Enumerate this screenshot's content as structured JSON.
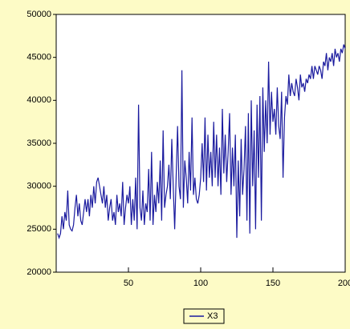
{
  "chart_data": {
    "type": "line",
    "x": [
      1,
      2,
      3,
      4,
      5,
      6,
      7,
      8,
      9,
      10,
      11,
      12,
      13,
      14,
      15,
      16,
      17,
      18,
      19,
      20,
      21,
      22,
      23,
      24,
      25,
      26,
      27,
      28,
      29,
      30,
      31,
      32,
      33,
      34,
      35,
      36,
      37,
      38,
      39,
      40,
      41,
      42,
      43,
      44,
      45,
      46,
      47,
      48,
      49,
      50,
      51,
      52,
      53,
      54,
      55,
      56,
      57,
      58,
      59,
      60,
      61,
      62,
      63,
      64,
      65,
      66,
      67,
      68,
      69,
      70,
      71,
      72,
      73,
      74,
      75,
      76,
      77,
      78,
      79,
      80,
      81,
      82,
      83,
      84,
      85,
      86,
      87,
      88,
      89,
      90,
      91,
      92,
      93,
      94,
      95,
      96,
      97,
      98,
      99,
      100,
      101,
      102,
      103,
      104,
      105,
      106,
      107,
      108,
      109,
      110,
      111,
      112,
      113,
      114,
      115,
      116,
      117,
      118,
      119,
      120,
      121,
      122,
      123,
      124,
      125,
      126,
      127,
      128,
      129,
      130,
      131,
      132,
      133,
      134,
      135,
      136,
      137,
      138,
      139,
      140,
      141,
      142,
      143,
      144,
      145,
      146,
      147,
      148,
      149,
      150,
      151,
      152,
      153,
      154,
      155,
      156,
      157,
      158,
      159,
      160,
      161,
      162,
      163,
      164,
      165,
      166,
      167,
      168,
      169,
      170,
      171,
      172,
      173,
      174,
      175,
      176,
      177,
      178,
      179,
      180,
      181,
      182,
      183,
      184,
      185,
      186,
      187,
      188,
      189,
      190,
      191,
      192,
      193,
      194,
      195,
      196,
      197,
      198,
      199,
      200
    ],
    "series": [
      {
        "name": "X3",
        "color": "#1a1a9e",
        "values": [
          24500,
          24000,
          24500,
          26500,
          25000,
          27000,
          26000,
          29500,
          25500,
          25000,
          24800,
          25500,
          27500,
          29000,
          26500,
          28000,
          26000,
          25500,
          27000,
          28500,
          27000,
          28500,
          26500,
          29000,
          27500,
          30000,
          28000,
          30500,
          31000,
          30000,
          29000,
          28000,
          30000,
          27500,
          29000,
          26000,
          27500,
          28500,
          26000,
          27000,
          25500,
          29000,
          27000,
          28000,
          26500,
          30500,
          25500,
          27500,
          29000,
          28000,
          30000,
          25500,
          28500,
          26000,
          31000,
          25000,
          39500,
          27500,
          26000,
          29500,
          25500,
          28000,
          27000,
          32000,
          26000,
          34000,
          25500,
          29000,
          27000,
          30500,
          28000,
          33000,
          26000,
          36500,
          27500,
          29000,
          30000,
          32500,
          28500,
          35500,
          30000,
          25000,
          31000,
          37000,
          30000,
          28500,
          43500,
          27500,
          33000,
          31000,
          28000,
          34000,
          29500,
          38000,
          29000,
          31000,
          28500,
          28000,
          29000,
          31000,
          35000,
          30500,
          38000,
          29500,
          36000,
          31000,
          34000,
          30000,
          37500,
          31000,
          36000,
          30000,
          34500,
          29000,
          39000,
          31500,
          36000,
          30500,
          34000,
          38500,
          29000,
          34500,
          30000,
          36000,
          24000,
          33000,
          26500,
          35500,
          29000,
          32000,
          37000,
          26000,
          38500,
          24500,
          40000,
          30000,
          36500,
          25000,
          39500,
          31000,
          40500,
          26000,
          41500,
          34000,
          40000,
          35000,
          44500,
          36000,
          41000,
          37500,
          39000,
          36000,
          41500,
          37000,
          35500,
          41000,
          31000,
          38000,
          40500,
          39500,
          43000,
          40500,
          42000,
          41000,
          40500,
          42500,
          41500,
          40000,
          43000,
          41500,
          42000,
          41000,
          42500,
          42000,
          43000,
          42500,
          44000,
          42500,
          44000,
          43500,
          43000,
          44000,
          43500,
          42500,
          44500,
          44000,
          45500,
          43500,
          45000,
          44500,
          45500,
          44000,
          46000,
          45000,
          45500,
          44500,
          46000,
          45500,
          46500,
          46000
        ]
      }
    ],
    "xlim": [
      0,
      200
    ],
    "xticks": [
      50,
      100,
      150,
      200
    ],
    "ylim": [
      20000,
      50000
    ],
    "yticks": [
      20000,
      25000,
      30000,
      35000,
      40000,
      45000,
      50000
    ]
  }
}
